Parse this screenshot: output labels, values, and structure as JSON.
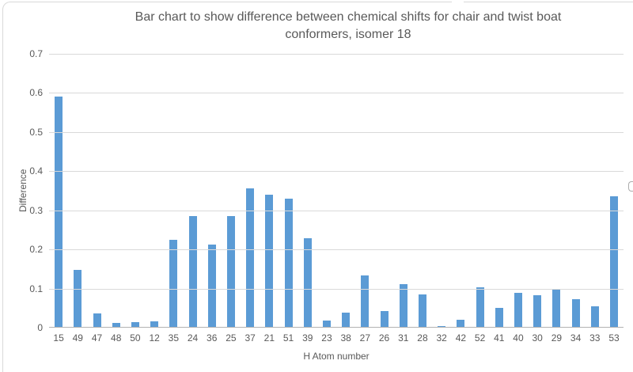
{
  "chart_data": {
    "type": "bar",
    "title": "Bar chart to show difference between chemical shifts for chair and twist boat conformers, isomer 18",
    "xlabel": "H Atom number",
    "ylabel": "Difference",
    "categories": [
      "15",
      "49",
      "47",
      "48",
      "50",
      "12",
      "35",
      "24",
      "36",
      "25",
      "37",
      "21",
      "51",
      "39",
      "23",
      "38",
      "27",
      "26",
      "31",
      "28",
      "32",
      "42",
      "52",
      "41",
      "40",
      "30",
      "29",
      "34",
      "33",
      "53"
    ],
    "values": [
      0.59,
      0.148,
      0.037,
      0.012,
      0.015,
      0.016,
      0.225,
      0.285,
      0.212,
      0.285,
      0.357,
      0.34,
      0.33,
      0.229,
      0.018,
      0.038,
      0.133,
      0.043,
      0.111,
      0.084,
      0.004,
      0.02,
      0.103,
      0.051,
      0.09,
      0.082,
      0.097,
      0.072,
      0.054,
      0.335
    ],
    "ylim": [
      0,
      0.7
    ],
    "y_ticks": [
      "0",
      "0.1",
      "0.2",
      "0.3",
      "0.4",
      "0.5",
      "0.6",
      "0.7"
    ],
    "grid": true,
    "legend": "none",
    "colors": {
      "bar": "#5B9BD5",
      "gridline": "#D9D9D9",
      "axis_line": "#B3B3B3",
      "text": "#595959",
      "frame_border": "#D9D9D9"
    }
  }
}
